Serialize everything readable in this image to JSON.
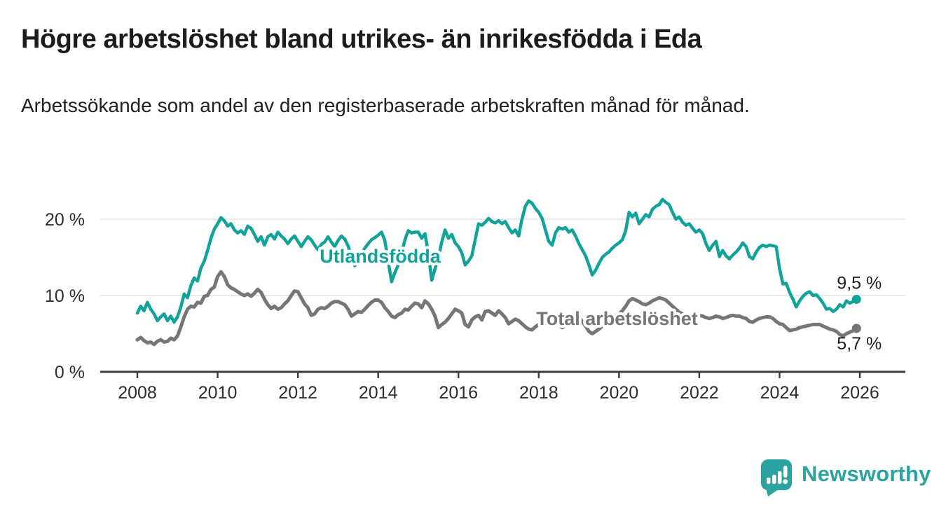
{
  "footer": {
    "brand": "Newsworthy"
  },
  "colors": {
    "foreign_born": "#11a29a",
    "total": "#75757a",
    "axis": "#3a3a3a",
    "grid": "#e2e2e2",
    "value_label": "#1d1d1d",
    "brand_teal": "#2ba3a0"
  },
  "chart_data": {
    "type": "line",
    "title": "Högre arbetslöshet bland utrikes- än inrikesfödda i Eda",
    "subtitle": "Arbetssökande som andel av den registerbaserade arbetskraften månad för månad.",
    "unit": "%",
    "frequency": "monthly",
    "start_year": 2008,
    "start_month": 1,
    "x_axis": {
      "tick_years": [
        2008,
        2010,
        2012,
        2014,
        2016,
        2018,
        2020,
        2022,
        2024,
        2026
      ]
    },
    "y_axis": {
      "ticks": [
        {
          "value": 0,
          "label": "0 %"
        },
        {
          "value": 10,
          "label": "10 %"
        },
        {
          "value": 20,
          "label": "20 %"
        }
      ]
    },
    "ylim": [
      0,
      23
    ],
    "grid": true,
    "legend_position": "inline-labels",
    "series": [
      {
        "name": "Utlandsfödda",
        "color": "#11a29a",
        "end_label": "9,5 %",
        "final_value": 9.5,
        "label_anchor": {
          "year": 2014.05,
          "value": 15.3
        },
        "values": [
          7.7,
          8.6,
          8.0,
          9.1,
          8.2,
          7.6,
          6.7,
          7.2,
          7.6,
          6.7,
          7.3,
          6.5,
          7.2,
          8.5,
          10.2,
          9.7,
          11.3,
          12.3,
          11.9,
          13.6,
          14.5,
          15.9,
          17.5,
          18.7,
          19.4,
          20.2,
          19.8,
          19.1,
          19.4,
          18.6,
          18.2,
          18.5,
          18.0,
          19.1,
          18.8,
          18.0,
          17.1,
          17.7,
          16.6,
          17.7,
          18.0,
          17.4,
          18.3,
          17.8,
          17.4,
          16.8,
          17.4,
          17.8,
          17.1,
          16.4,
          17.1,
          17.7,
          17.3,
          16.6,
          16.0,
          16.7,
          17.0,
          17.7,
          17.0,
          16.4,
          17.2,
          17.8,
          17.4,
          16.5,
          15.2,
          13.9,
          14.6,
          15.5,
          16.2,
          16.8,
          17.3,
          17.6,
          17.9,
          18.3,
          17.2,
          14.5,
          11.8,
          13.0,
          14.0,
          15.5,
          17.3,
          18.5,
          18.2,
          18.3,
          18.3,
          17.5,
          18.1,
          15.5,
          12.0,
          13.5,
          15.0,
          17.0,
          18.6,
          17.5,
          18.0,
          16.9,
          16.4,
          15.6,
          14.0,
          14.5,
          15.2,
          17.3,
          19.4,
          19.2,
          19.6,
          20.1,
          19.7,
          19.5,
          19.8,
          19.4,
          19.7,
          18.9,
          18.2,
          18.6,
          17.8,
          20.0,
          21.7,
          22.4,
          22.1,
          21.4,
          20.9,
          20.1,
          18.6,
          17.1,
          16.6,
          18.2,
          18.9,
          18.7,
          18.9,
          18.3,
          18.6,
          17.8,
          16.8,
          16.0,
          15.2,
          14.0,
          12.7,
          13.3,
          14.2,
          15.0,
          15.4,
          15.7,
          16.2,
          16.6,
          16.9,
          17.3,
          18.5,
          20.9,
          20.3,
          20.8,
          19.4,
          20.0,
          20.6,
          20.3,
          21.3,
          21.7,
          21.9,
          22.6,
          22.2,
          21.9,
          20.9,
          20.0,
          20.3,
          19.6,
          19.2,
          19.4,
          18.8,
          18.3,
          18.6,
          18.1,
          16.8,
          15.9,
          16.6,
          17.1,
          15.1,
          15.9,
          15.2,
          14.8,
          15.3,
          15.7,
          16.2,
          16.9,
          16.4,
          15.1,
          14.8,
          15.7,
          16.3,
          16.6,
          16.4,
          16.6,
          16.5,
          16.4,
          13.5,
          11.5,
          11.6,
          10.4,
          9.5,
          8.5,
          9.3,
          9.9,
          10.3,
          10.5,
          10.0,
          10.1,
          9.6,
          9.0,
          8.2,
          8.3,
          7.9,
          8.2,
          8.8,
          8.5,
          9.3,
          9.0,
          9.2,
          9.5
        ]
      },
      {
        "name": "Total arbetslöshet",
        "color": "#75757a",
        "end_label": "5,7 %",
        "final_value": 5.7,
        "label_anchor": {
          "year": 2019.95,
          "value": 7.15
        },
        "values": [
          4.2,
          4.5,
          4.1,
          3.8,
          3.9,
          3.6,
          4.0,
          4.2,
          3.9,
          4.0,
          4.4,
          4.2,
          4.7,
          5.9,
          7.2,
          8.2,
          8.6,
          8.5,
          9.1,
          9.0,
          9.9,
          10.0,
          10.8,
          11.1,
          12.5,
          13.1,
          12.5,
          11.4,
          11.0,
          10.8,
          10.5,
          10.2,
          10.0,
          10.2,
          9.9,
          10.3,
          10.8,
          10.4,
          9.5,
          8.8,
          8.3,
          8.6,
          8.2,
          8.4,
          8.9,
          9.3,
          10.0,
          10.6,
          10.5,
          9.7,
          8.9,
          8.4,
          7.4,
          7.6,
          8.2,
          8.4,
          8.3,
          8.6,
          9.0,
          9.2,
          9.2,
          9.0,
          8.8,
          8.2,
          7.3,
          7.6,
          7.9,
          7.8,
          8.2,
          8.7,
          9.1,
          9.4,
          9.4,
          9.1,
          8.4,
          7.9,
          7.3,
          7.1,
          7.5,
          7.7,
          8.2,
          8.1,
          8.6,
          9.0,
          8.9,
          8.4,
          9.3,
          8.9,
          8.2,
          7.3,
          5.8,
          6.2,
          6.5,
          7.0,
          7.6,
          8.2,
          8.0,
          7.7,
          6.2,
          5.9,
          6.8,
          7.2,
          7.4,
          6.8,
          7.9,
          8.0,
          7.7,
          7.4,
          8.0,
          7.6,
          7.1,
          6.3,
          6.6,
          6.9,
          6.7,
          6.3,
          5.9,
          5.6,
          5.5,
          5.9,
          6.2,
          6.6,
          7.0,
          7.3,
          7.2,
          6.8,
          6.2,
          5.8,
          6.1,
          6.5,
          6.9,
          7.3,
          7.2,
          6.6,
          6.0,
          5.3,
          5.0,
          5.3,
          5.6,
          6.0,
          6.5,
          7.0,
          7.2,
          7.4,
          7.6,
          8.0,
          8.6,
          9.3,
          9.6,
          9.4,
          9.2,
          8.9,
          8.8,
          9.0,
          9.3,
          9.5,
          9.7,
          9.6,
          9.4,
          9.0,
          8.6,
          8.2,
          7.8,
          7.6,
          7.5,
          7.4,
          7.3,
          7.3,
          7.4,
          7.3,
          7.1,
          7.0,
          7.1,
          7.3,
          7.2,
          7.0,
          7.1,
          7.3,
          7.4,
          7.3,
          7.3,
          7.1,
          7.0,
          6.6,
          6.5,
          6.8,
          7.0,
          7.1,
          7.2,
          7.2,
          7.0,
          6.6,
          6.3,
          6.2,
          5.8,
          5.4,
          5.5,
          5.6,
          5.8,
          5.9,
          6.0,
          6.1,
          6.2,
          6.2,
          6.2,
          6.0,
          5.8,
          5.6,
          5.5,
          5.3,
          4.9,
          4.7,
          5.0,
          5.2,
          5.4,
          5.7
        ]
      }
    ]
  }
}
